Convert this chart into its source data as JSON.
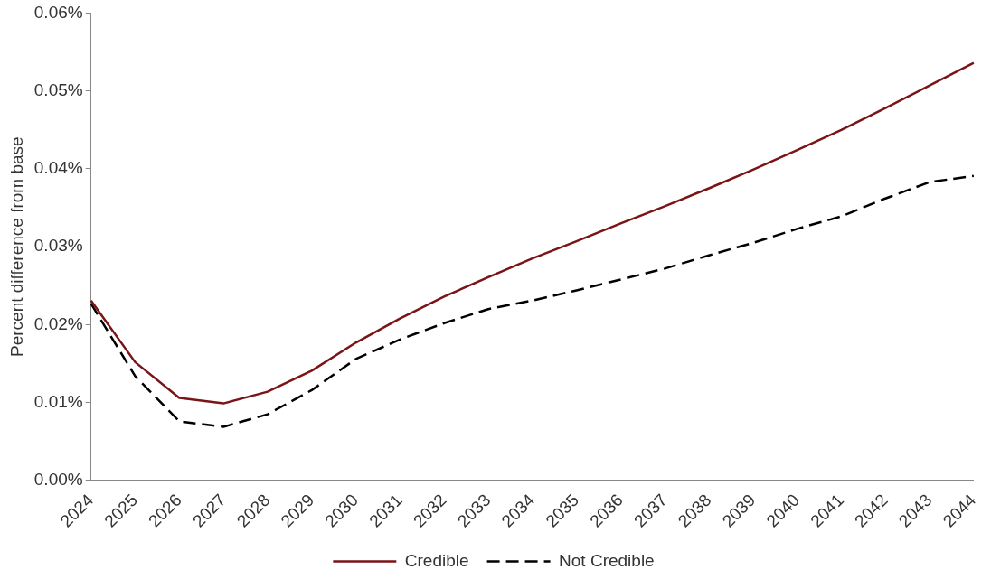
{
  "chart_data": {
    "type": "line",
    "ylabel": "Percent difference from base",
    "categories": [
      "2024",
      "2025",
      "2026",
      "2027",
      "2028",
      "2029",
      "2030",
      "2031",
      "2032",
      "2033",
      "2034",
      "2035",
      "2036",
      "2037",
      "2038",
      "2039",
      "2040",
      "2041",
      "2042",
      "2043",
      "2044"
    ],
    "series": [
      {
        "name": "Credible",
        "color": "#7b1416",
        "line_style": "solid",
        "values": [
          0.0231,
          0.0152,
          0.0106,
          0.0099,
          0.0114,
          0.0141,
          0.0177,
          0.0208,
          0.0236,
          0.0261,
          0.0285,
          0.0307,
          0.033,
          0.0352,
          0.0375,
          0.0399,
          0.0424,
          0.045,
          0.0478,
          0.0507,
          0.0536
        ]
      },
      {
        "name": "Not Credible",
        "color": "#000000",
        "line_style": "dashed",
        "values": [
          0.0227,
          0.0134,
          0.0076,
          0.0069,
          0.0085,
          0.0116,
          0.0156,
          0.0181,
          0.0202,
          0.022,
          0.0231,
          0.0244,
          0.0258,
          0.0272,
          0.0289,
          0.0305,
          0.0323,
          0.0339,
          0.0362,
          0.0383,
          0.0391
        ]
      }
    ],
    "ylim": [
      0,
      0.06
    ],
    "yticks": [
      {
        "value": 0,
        "label": "0.00%"
      },
      {
        "value": 0.01,
        "label": "0.01%"
      },
      {
        "value": 0.02,
        "label": "0.02%"
      },
      {
        "value": 0.03,
        "label": "0.03%"
      },
      {
        "value": 0.04,
        "label": "0.04%"
      },
      {
        "value": 0.05,
        "label": "0.05%"
      },
      {
        "value": 0.06,
        "label": "0.06%"
      }
    ],
    "grid": false,
    "legend": "bottom",
    "marker": "none"
  }
}
